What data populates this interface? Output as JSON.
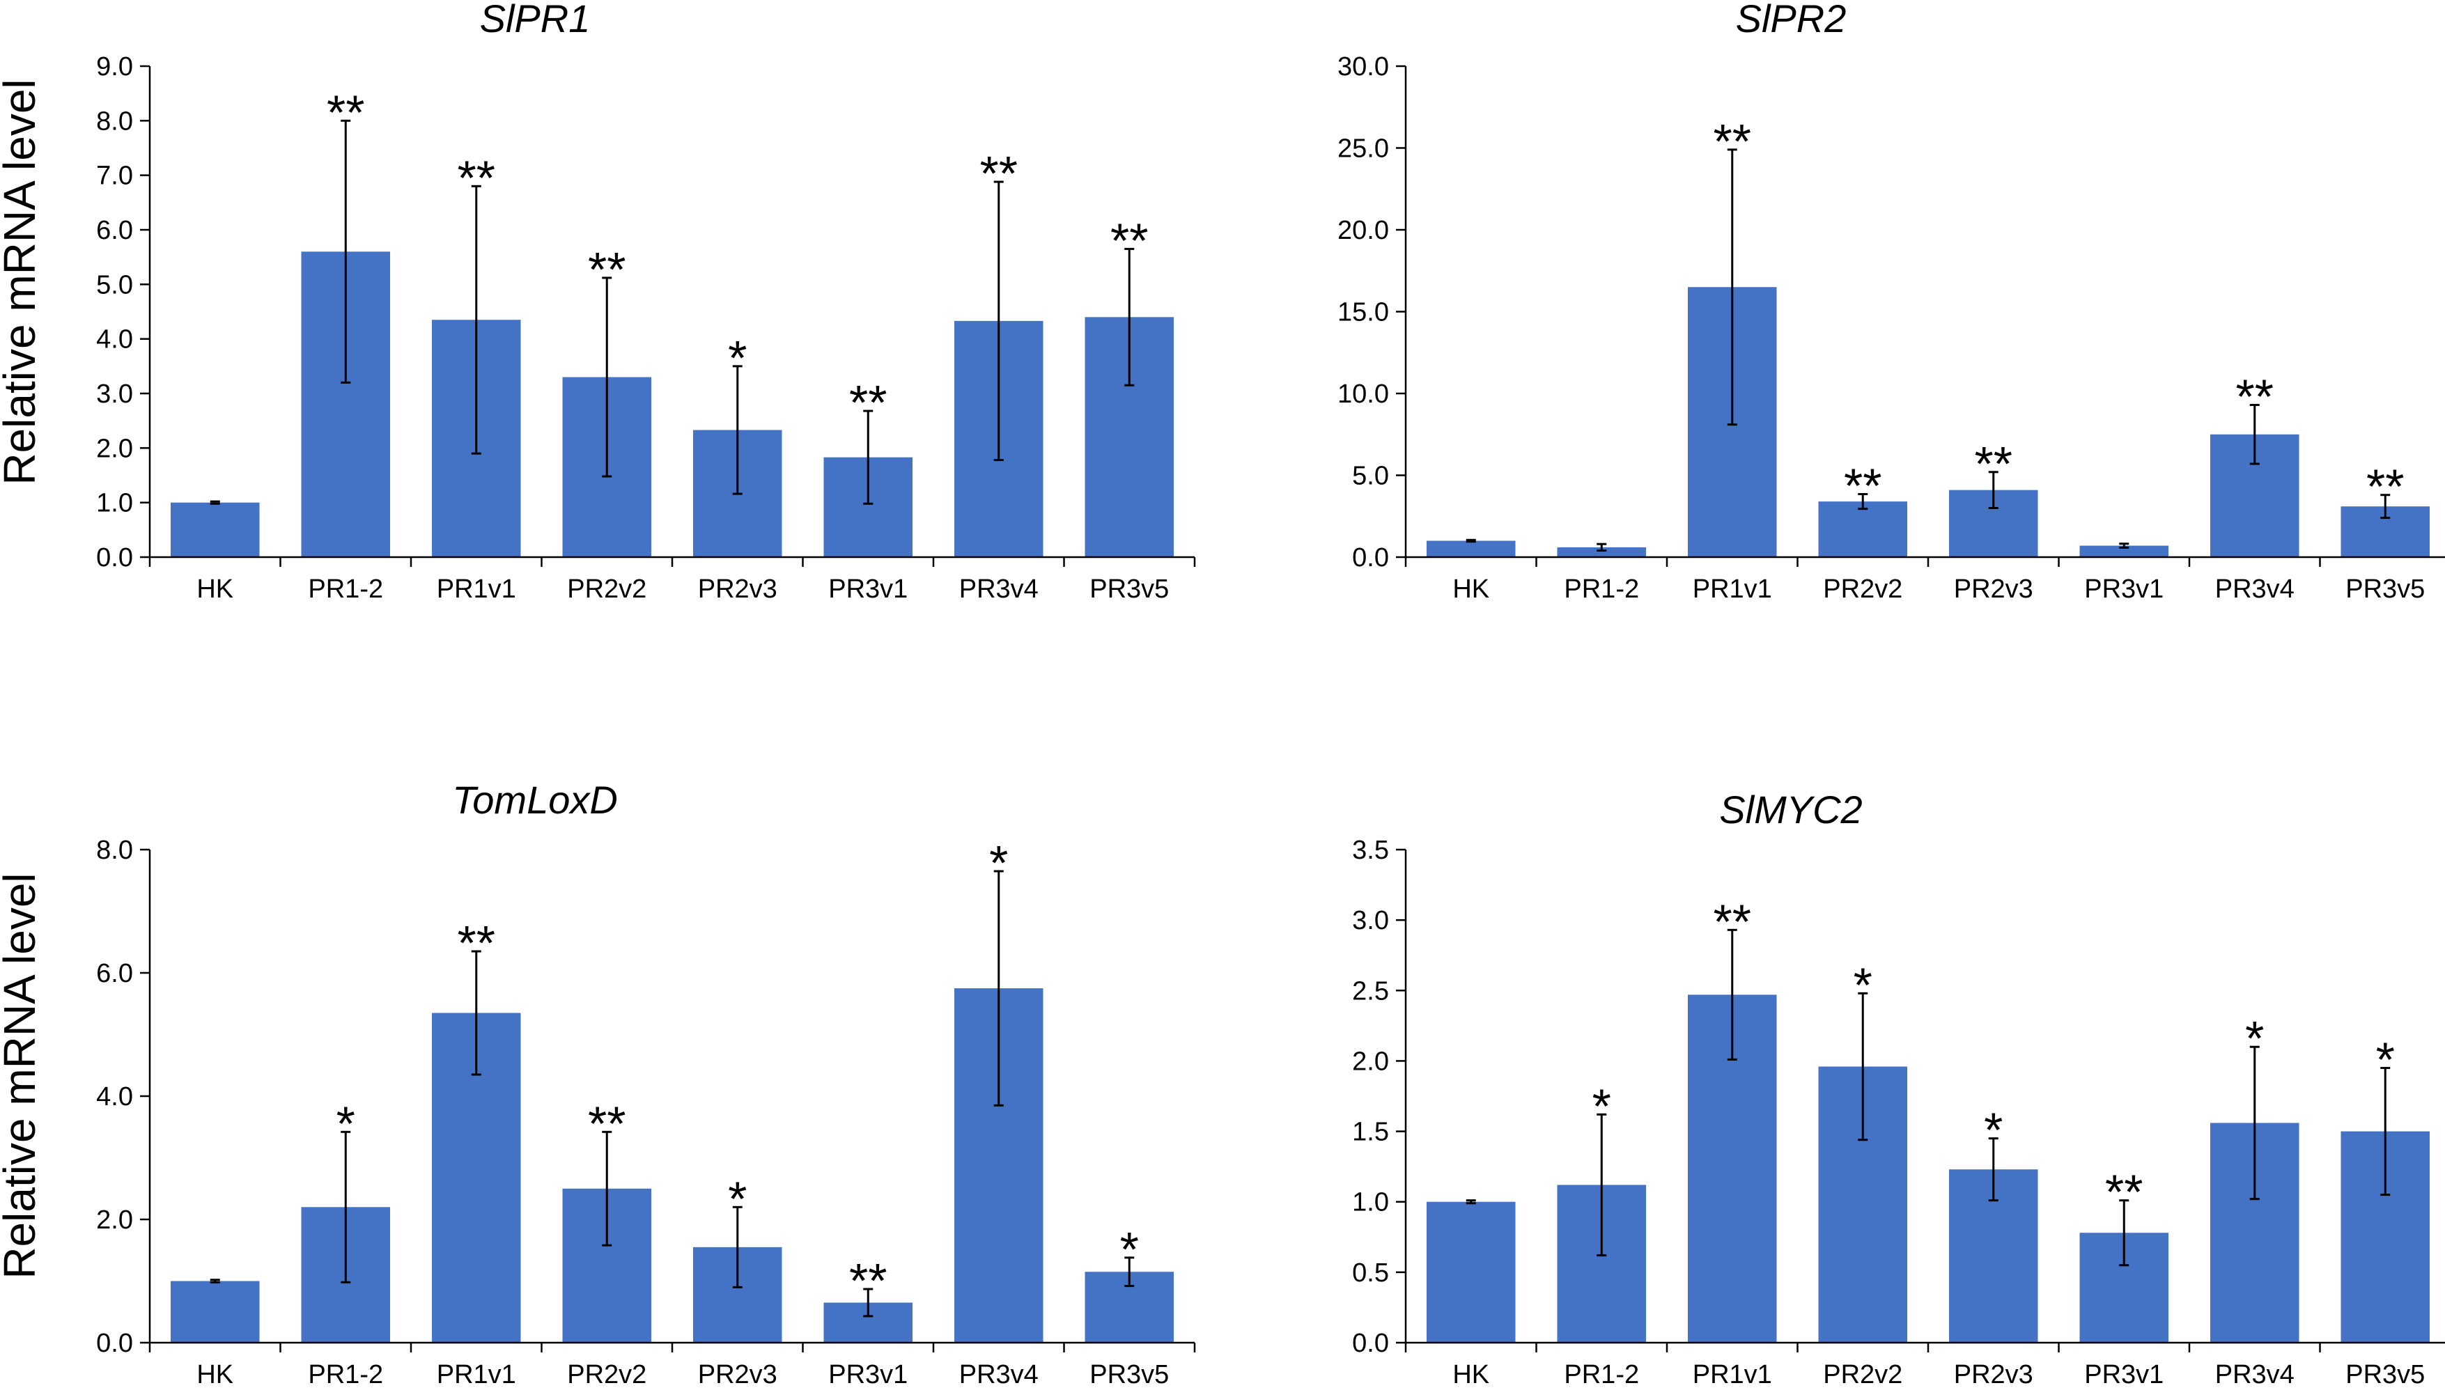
{
  "figure": {
    "ylabel": "Relative mRNA level",
    "bar_color": "#4472C4",
    "axis_color": "#000000",
    "error_color": "#000000"
  },
  "chart_data": [
    {
      "type": "bar",
      "title": "SlPR1",
      "ylabel": "Relative mRNA level",
      "categories": [
        "HK",
        "PR1-2",
        "PR1v1",
        "PR2v2",
        "PR2v3",
        "PR3v1",
        "PR3v4",
        "PR3v5"
      ],
      "values": [
        1.0,
        5.6,
        4.35,
        3.3,
        2.33,
        1.83,
        4.33,
        4.4
      ],
      "errors": [
        0.02,
        2.4,
        2.45,
        1.82,
        1.17,
        0.85,
        2.55,
        1.25
      ],
      "significance": [
        "",
        "**",
        "**",
        "**",
        "*",
        "**",
        "**",
        "**"
      ],
      "ylim": [
        0,
        9
      ],
      "yticks": [
        "0.0",
        "1.0",
        "2.0",
        "3.0",
        "4.0",
        "5.0",
        "6.0",
        "7.0",
        "8.0",
        "9.0"
      ]
    },
    {
      "type": "bar",
      "title": "SlPR2",
      "ylabel": "",
      "categories": [
        "HK",
        "PR1-2",
        "PR1v1",
        "PR2v2",
        "PR2v3",
        "PR3v1",
        "PR3v4",
        "PR3v5"
      ],
      "values": [
        1.0,
        0.6,
        16.5,
        3.4,
        4.1,
        0.7,
        7.5,
        3.1
      ],
      "errors": [
        0.05,
        0.2,
        8.4,
        0.45,
        1.1,
        0.12,
        1.8,
        0.7
      ],
      "significance": [
        "",
        "",
        "**",
        "**",
        "**",
        "",
        "**",
        "**"
      ],
      "ylim": [
        0,
        30
      ],
      "yticks": [
        "0.0",
        "5.0",
        "10.0",
        "15.0",
        "20.0",
        "25.0",
        "30.0"
      ]
    },
    {
      "type": "bar",
      "title": "TomLoxD",
      "ylabel": "Relative mRNA level",
      "categories": [
        "HK",
        "PR1-2",
        "PR1v1",
        "PR2v2",
        "PR2v3",
        "PR3v1",
        "PR3v4",
        "PR3v5"
      ],
      "values": [
        1.0,
        2.2,
        5.35,
        2.5,
        1.55,
        0.65,
        5.75,
        1.15
      ],
      "errors": [
        0.02,
        1.22,
        1.0,
        0.92,
        0.65,
        0.22,
        1.9,
        0.23
      ],
      "significance": [
        "",
        "*",
        "**",
        "**",
        "*",
        "**",
        "*",
        "*"
      ],
      "ylim": [
        0,
        8
      ],
      "yticks": [
        "0.0",
        "2.0",
        "4.0",
        "6.0",
        "8.0"
      ]
    },
    {
      "type": "bar",
      "title": "SlMYC2",
      "ylabel": "",
      "categories": [
        "HK",
        "PR1-2",
        "PR1v1",
        "PR2v2",
        "PR2v3",
        "PR3v1",
        "PR3v4",
        "PR3v5"
      ],
      "values": [
        1.0,
        1.12,
        2.47,
        1.96,
        1.23,
        0.78,
        1.56,
        1.5
      ],
      "errors": [
        0.01,
        0.5,
        0.46,
        0.52,
        0.22,
        0.23,
        0.54,
        0.45
      ],
      "significance": [
        "",
        "*",
        "**",
        "*",
        "*",
        "**",
        "*",
        "*"
      ],
      "ylim": [
        0,
        3.5
      ],
      "yticks": [
        "0.0",
        "0.5",
        "1.0",
        "1.5",
        "2.0",
        "2.5",
        "3.0",
        "3.5"
      ]
    }
  ]
}
